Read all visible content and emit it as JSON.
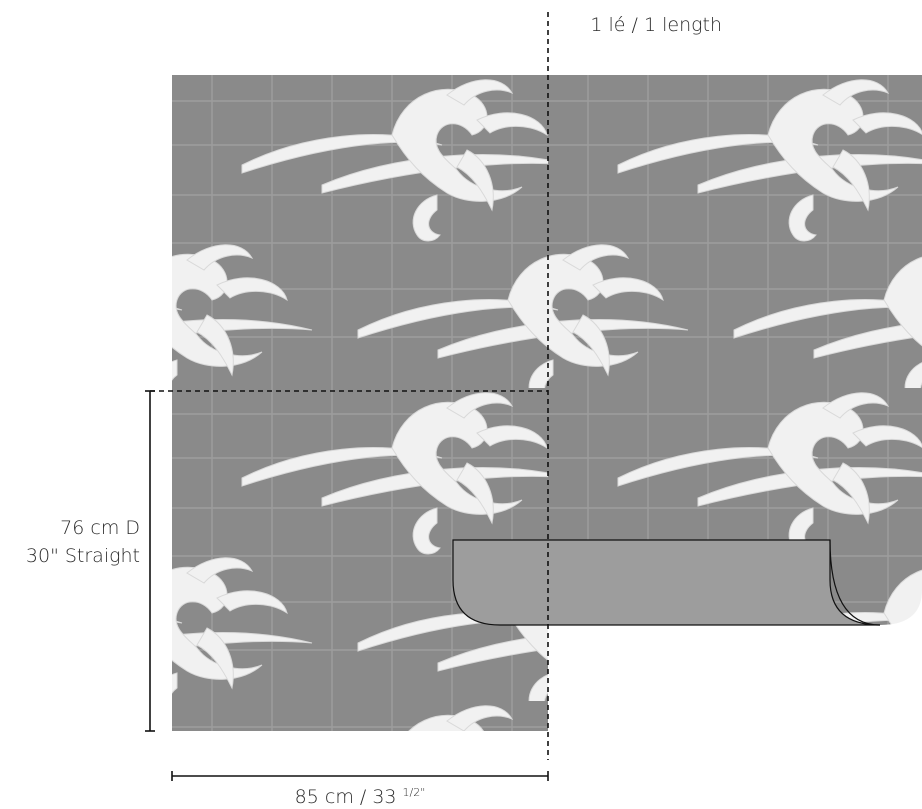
{
  "labels": {
    "length": "1 lé / 1 length",
    "height_line1": "76 cm D",
    "height_line2": "30\" Straight",
    "width_main": "85 cm / 33 ",
    "width_frac": "1/2\""
  },
  "colors": {
    "panel": "#8a8a8a",
    "grid": "#a4a4a4",
    "motif": "#f2f2f2",
    "roll": "#9e9e9e",
    "line": "#111111"
  },
  "icons": [
    "wave-motif-icon"
  ]
}
